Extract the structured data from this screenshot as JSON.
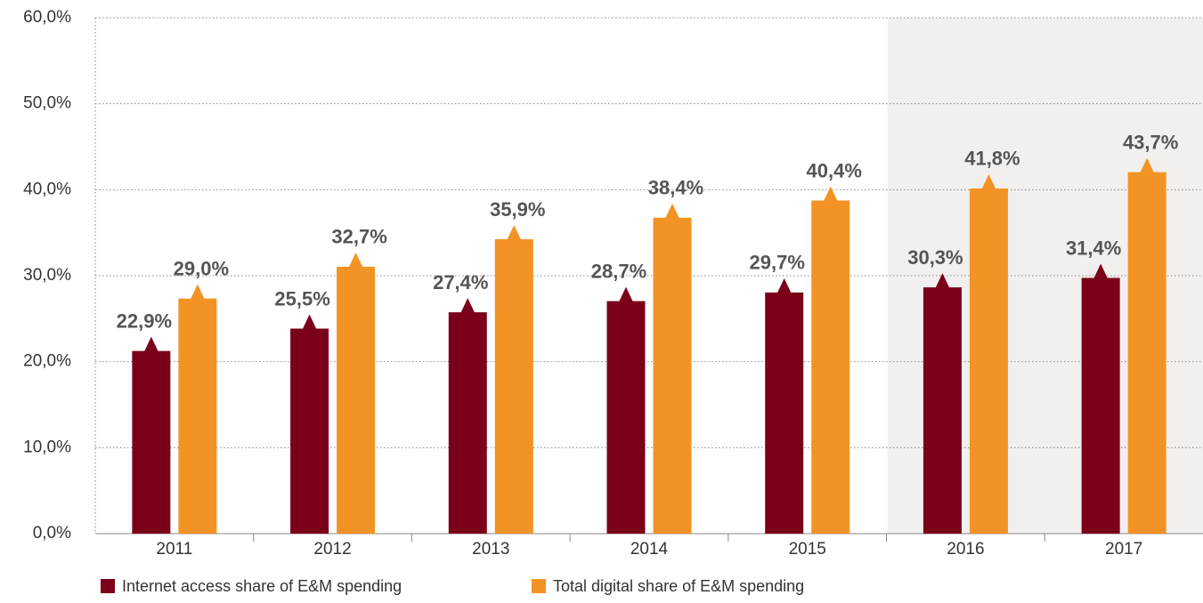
{
  "chart_data": {
    "type": "bar",
    "categories": [
      "2011",
      "2012",
      "2013",
      "2014",
      "2015",
      "2016",
      "2017"
    ],
    "series": [
      {
        "name": "Internet access share of E&M spending",
        "color": "#7b0019",
        "values": [
          22.9,
          25.5,
          27.4,
          28.7,
          29.7,
          30.3,
          31.4
        ],
        "value_labels": [
          "22,9%",
          "25,5%",
          "27,4%",
          "28,7%",
          "29,7%",
          "30,3%",
          "31,4%"
        ]
      },
      {
        "name": "Total digital share of E&M spending",
        "color": "#f39325",
        "values": [
          29.0,
          32.7,
          35.9,
          38.4,
          40.4,
          41.8,
          43.7
        ],
        "value_labels": [
          "29,0%",
          "32,7%",
          "35,9%",
          "38,4%",
          "40,4%",
          "41,8%",
          "43,7%"
        ]
      }
    ],
    "ylim": [
      0,
      60
    ],
    "yticks": [
      {
        "value": 0,
        "label": "0,0%"
      },
      {
        "value": 10,
        "label": "10,0%"
      },
      {
        "value": 20,
        "label": "20,0%"
      },
      {
        "value": 30,
        "label": "30,0%"
      },
      {
        "value": 40,
        "label": "40,0%"
      },
      {
        "value": 50,
        "label": "50,0%"
      },
      {
        "value": 60,
        "label": "60,0%"
      }
    ],
    "grid": true
  }
}
